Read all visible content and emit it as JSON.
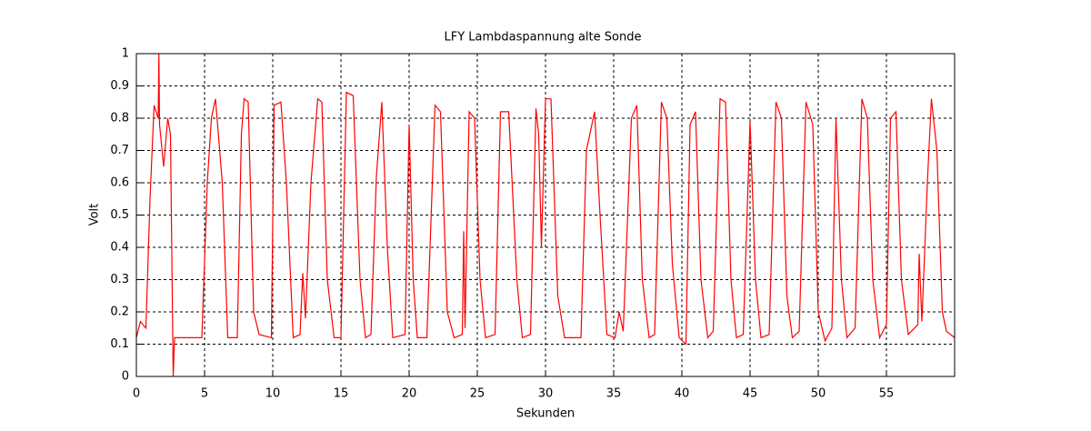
{
  "chart_data": {
    "type": "line",
    "title": "LFY  Lambdaspannung alte Sonde",
    "x_label": "Sekunden",
    "y_label": "Volt",
    "xlim": [
      0,
      60
    ],
    "xticks": [
      0,
      5,
      10,
      15,
      20,
      25,
      30,
      35,
      40,
      45,
      50,
      55
    ],
    "ylim": [
      0,
      1
    ],
    "yticks": [
      0,
      0.1,
      0.2,
      0.3,
      0.4,
      0.5,
      0.6,
      0.7,
      0.8,
      0.9,
      1
    ],
    "grid": true,
    "x": [
      0,
      0.3,
      0.7,
      1.0,
      1.3,
      1.6,
      1.65,
      1.7,
      2.0,
      2.3,
      2.5,
      2.7,
      2.8,
      4.8,
      5.2,
      5.5,
      5.8,
      6.3,
      6.7,
      7.4,
      7.7,
      7.9,
      8.2,
      8.6,
      9.0,
      9.9,
      10.1,
      10.6,
      11.0,
      11.5,
      12.0,
      12.2,
      12.4,
      12.8,
      13.3,
      13.6,
      14.0,
      14.5,
      15.0,
      15.4,
      15.9,
      16.4,
      16.8,
      17.2,
      17.6,
      18.0,
      18.4,
      18.8,
      19.7,
      20.0,
      20.3,
      20.6,
      21.3,
      21.9,
      22.3,
      22.8,
      23.3,
      23.9,
      24.0,
      24.1,
      24.4,
      24.8,
      25.2,
      25.6,
      26.3,
      26.7,
      27.3,
      27.9,
      28.3,
      28.9,
      29.3,
      29.5,
      29.7,
      30.0,
      30.4,
      30.9,
      31.4,
      32.6,
      33.0,
      33.6,
      34.0,
      34.5,
      35.1,
      35.4,
      35.7,
      36.3,
      36.7,
      37.1,
      37.6,
      38.0,
      38.5,
      38.9,
      39.3,
      39.8,
      40.3,
      40.6,
      41.0,
      41.4,
      41.9,
      42.3,
      42.8,
      43.2,
      43.6,
      44.0,
      44.5,
      45.0,
      45.4,
      45.8,
      46.4,
      46.9,
      47.3,
      47.7,
      48.1,
      48.6,
      49.1,
      49.6,
      50.0,
      50.5,
      51.0,
      51.3,
      51.7,
      52.1,
      52.7,
      53.2,
      53.6,
      54.0,
      54.5,
      55.0,
      55.3,
      55.7,
      56.1,
      56.6,
      57.3,
      57.4,
      57.6,
      58.0,
      58.3,
      58.7,
      59.1,
      59.4,
      60
    ],
    "series": [
      {
        "name": "Lambdaspannung",
        "color": "#ff0000",
        "values": [
          0.12,
          0.17,
          0.15,
          0.55,
          0.84,
          0.8,
          1.0,
          0.78,
          0.65,
          0.8,
          0.75,
          0.0,
          0.12,
          0.12,
          0.6,
          0.8,
          0.86,
          0.6,
          0.12,
          0.12,
          0.75,
          0.86,
          0.85,
          0.2,
          0.13,
          0.12,
          0.84,
          0.85,
          0.6,
          0.12,
          0.13,
          0.32,
          0.18,
          0.6,
          0.86,
          0.85,
          0.3,
          0.12,
          0.12,
          0.88,
          0.87,
          0.3,
          0.12,
          0.13,
          0.62,
          0.85,
          0.4,
          0.12,
          0.13,
          0.78,
          0.3,
          0.12,
          0.12,
          0.84,
          0.82,
          0.2,
          0.12,
          0.13,
          0.45,
          0.15,
          0.82,
          0.8,
          0.3,
          0.12,
          0.13,
          0.82,
          0.82,
          0.3,
          0.12,
          0.13,
          0.83,
          0.75,
          0.4,
          0.86,
          0.86,
          0.25,
          0.12,
          0.12,
          0.7,
          0.82,
          0.5,
          0.13,
          0.12,
          0.2,
          0.14,
          0.8,
          0.84,
          0.3,
          0.12,
          0.13,
          0.85,
          0.8,
          0.35,
          0.12,
          0.1,
          0.78,
          0.82,
          0.3,
          0.12,
          0.14,
          0.86,
          0.85,
          0.3,
          0.12,
          0.13,
          0.79,
          0.3,
          0.12,
          0.13,
          0.85,
          0.8,
          0.25,
          0.12,
          0.14,
          0.85,
          0.78,
          0.2,
          0.11,
          0.15,
          0.8,
          0.3,
          0.12,
          0.15,
          0.86,
          0.8,
          0.3,
          0.12,
          0.16,
          0.8,
          0.82,
          0.3,
          0.13,
          0.16,
          0.38,
          0.17,
          0.6,
          0.86,
          0.7,
          0.2,
          0.14,
          0.12
        ]
      }
    ]
  }
}
